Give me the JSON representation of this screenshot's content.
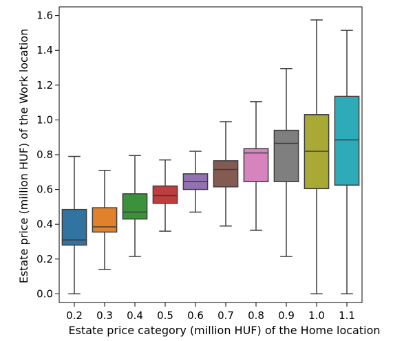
{
  "chart_data": {
    "type": "box",
    "xlabel": "Estate price category (million HUF) of the Home location",
    "ylabel": "Estate price (million HUF) of the Work location",
    "categories": [
      "0.2",
      "0.3",
      "0.4",
      "0.5",
      "0.6",
      "0.7",
      "0.8",
      "0.9",
      "1.0",
      "1.1"
    ],
    "y_ticks": [
      "0.0",
      "0.2",
      "0.4",
      "0.6",
      "0.8",
      "1.0",
      "1.2",
      "1.4",
      "1.6"
    ],
    "ylim": [
      -0.05,
      1.65
    ],
    "grid": false,
    "boxes": [
      {
        "category": "0.2",
        "whisker_low": 0.0,
        "q1": 0.28,
        "median": 0.31,
        "q3": 0.485,
        "whisker_high": 0.79,
        "color": "#3274a1"
      },
      {
        "category": "0.3",
        "whisker_low": 0.14,
        "q1": 0.355,
        "median": 0.385,
        "q3": 0.495,
        "whisker_high": 0.71,
        "color": "#e1812c"
      },
      {
        "category": "0.4",
        "whisker_low": 0.215,
        "q1": 0.43,
        "median": 0.47,
        "q3": 0.575,
        "whisker_high": 0.795,
        "color": "#3a923a"
      },
      {
        "category": "0.5",
        "whisker_low": 0.36,
        "q1": 0.52,
        "median": 0.565,
        "q3": 0.62,
        "whisker_high": 0.77,
        "color": "#c03d3e"
      },
      {
        "category": "0.6",
        "whisker_low": 0.47,
        "q1": 0.6,
        "median": 0.645,
        "q3": 0.69,
        "whisker_high": 0.82,
        "color": "#9372b2"
      },
      {
        "category": "0.7",
        "whisker_low": 0.39,
        "q1": 0.615,
        "median": 0.715,
        "q3": 0.765,
        "whisker_high": 0.99,
        "color": "#845b53"
      },
      {
        "category": "0.8",
        "whisker_low": 0.365,
        "q1": 0.645,
        "median": 0.81,
        "q3": 0.835,
        "whisker_high": 1.105,
        "color": "#d684bd"
      },
      {
        "category": "0.9",
        "whisker_low": 0.215,
        "q1": 0.645,
        "median": 0.865,
        "q3": 0.94,
        "whisker_high": 1.295,
        "color": "#7f7f7f"
      },
      {
        "category": "1.0",
        "whisker_low": 0.0,
        "q1": 0.605,
        "median": 0.82,
        "q3": 1.03,
        "whisker_high": 1.575,
        "color": "#a9aa35"
      },
      {
        "category": "1.1",
        "whisker_low": 0.0,
        "q1": 0.625,
        "median": 0.885,
        "q3": 1.135,
        "whisker_high": 1.515,
        "color": "#2eabb8"
      }
    ]
  }
}
